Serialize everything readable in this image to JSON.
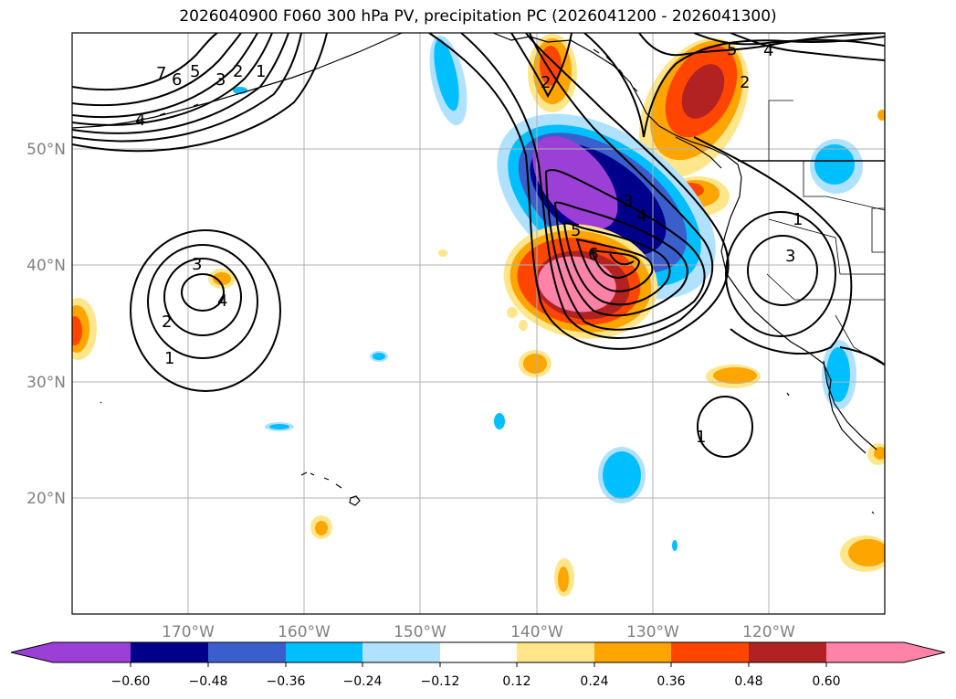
{
  "title": "2026040900 F060 300 hPa PV, precipitation PC (2026041200 - 2026041300)",
  "map": {
    "lat_labels": [
      "50°N",
      "40°N",
      "30°N",
      "20°N"
    ],
    "lon_labels": [
      "170°W",
      "160°W",
      "150°W",
      "140°W",
      "130°W",
      "120°W"
    ],
    "colors": {
      "coast": "#000000",
      "grid": "#b0b0b0",
      "tick_label": "#808080",
      "contour": "#000000"
    }
  },
  "contour_labels": {
    "pv_nw": [
      "7",
      "6",
      "5",
      "3",
      "2",
      "1",
      "4"
    ],
    "pv_cutoff": [
      "3",
      "4",
      "2",
      "1"
    ],
    "pv_trough": [
      "3",
      "4",
      "5",
      "6"
    ],
    "pv_north": [
      "2",
      "5",
      "4",
      "2"
    ],
    "pv_east": [
      "3",
      "1"
    ],
    "pv_south": [
      "1"
    ]
  },
  "colorbar": {
    "ticks": [
      "−0.60",
      "−0.48",
      "−0.36",
      "−0.24",
      "−0.12",
      "0.12",
      "0.24",
      "0.36",
      "0.48",
      "0.60"
    ],
    "colors": [
      "#9b3fd6",
      "#00008b",
      "#3a5fcd",
      "#00bfff",
      "#b0e2ff",
      "#ffffff",
      "#ffe68a",
      "#ffa500",
      "#ff4500",
      "#b22222",
      "#ff82a8"
    ]
  }
}
